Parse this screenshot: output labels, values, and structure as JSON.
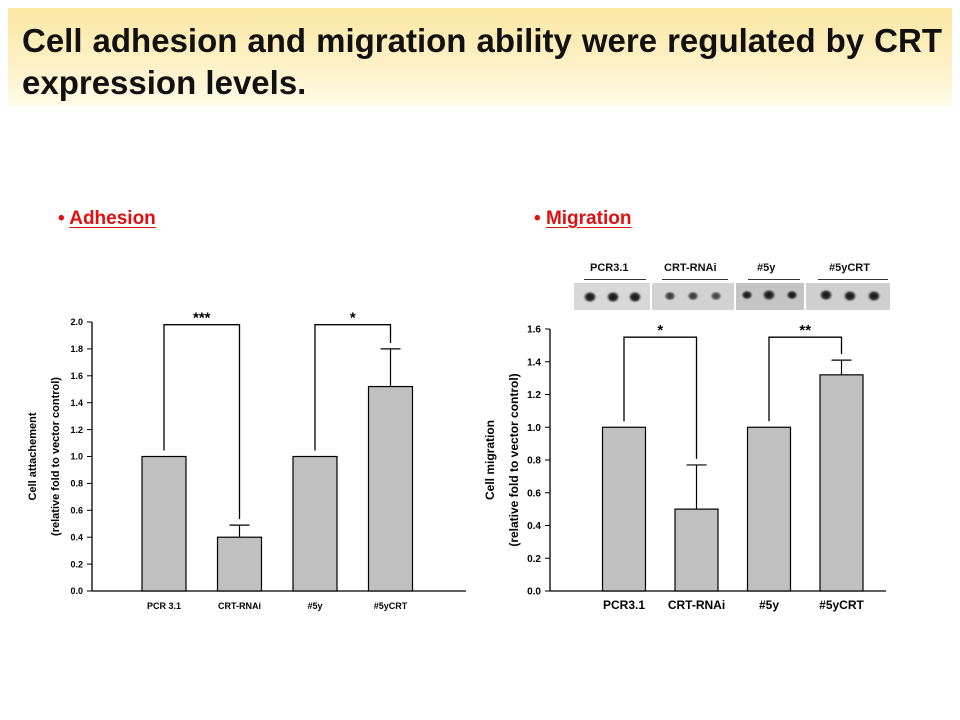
{
  "title": "Cell adhesion and migration ability were regulated by CRT expression levels.",
  "bullets": {
    "adhesion": "Adhesion",
    "migration": "Migration",
    "marker": "•"
  },
  "blot": {
    "labels": [
      "PCR3.1",
      "CRT-RNAi",
      "#5y",
      "#5yCRT"
    ]
  },
  "chart_data": [
    {
      "type": "bar",
      "name_key": "adhesion",
      "categories": [
        "PCR 3.1",
        "CRT-RNAi",
        "#5y",
        "#5yCRT"
      ],
      "values": [
        1.0,
        0.4,
        1.0,
        1.52
      ],
      "errors": [
        0,
        0.09,
        0,
        0.28
      ],
      "ylabel_line1": "Cell attachement",
      "ylabel_line2": "(relative fold to vector control)",
      "ylim": [
        0,
        2.0
      ],
      "yticks": [
        "0.0",
        "0.2",
        "0.4",
        "0.6",
        "0.8",
        "1.0",
        "1.2",
        "1.4",
        "1.6",
        "1.8",
        "2.0"
      ],
      "bar_color": "#c0c0c0",
      "significance": [
        {
          "from": 0,
          "to": 1,
          "label": "***",
          "y": 1.98
        },
        {
          "from": 2,
          "to": 3,
          "label": "*",
          "y": 1.98
        }
      ]
    },
    {
      "type": "bar",
      "name_key": "migration",
      "categories": [
        "PCR3.1",
        "CRT-RNAi",
        "#5y",
        "#5yCRT"
      ],
      "values": [
        1.0,
        0.5,
        1.0,
        1.32
      ],
      "errors": [
        0,
        0.27,
        0,
        0.09
      ],
      "ylabel_line1": "Cell migration",
      "ylabel_line2": "(relative fold to vector control)",
      "ylim": [
        0,
        1.6
      ],
      "yticks": [
        "0.0",
        "0.2",
        "0.4",
        "0.6",
        "0.8",
        "1.0",
        "1.2",
        "1.4",
        "1.6"
      ],
      "bar_color": "#c0c0c0",
      "significance": [
        {
          "from": 0,
          "to": 1,
          "label": "*",
          "y": 1.55
        },
        {
          "from": 2,
          "to": 3,
          "label": "**",
          "y": 1.55
        }
      ]
    }
  ]
}
